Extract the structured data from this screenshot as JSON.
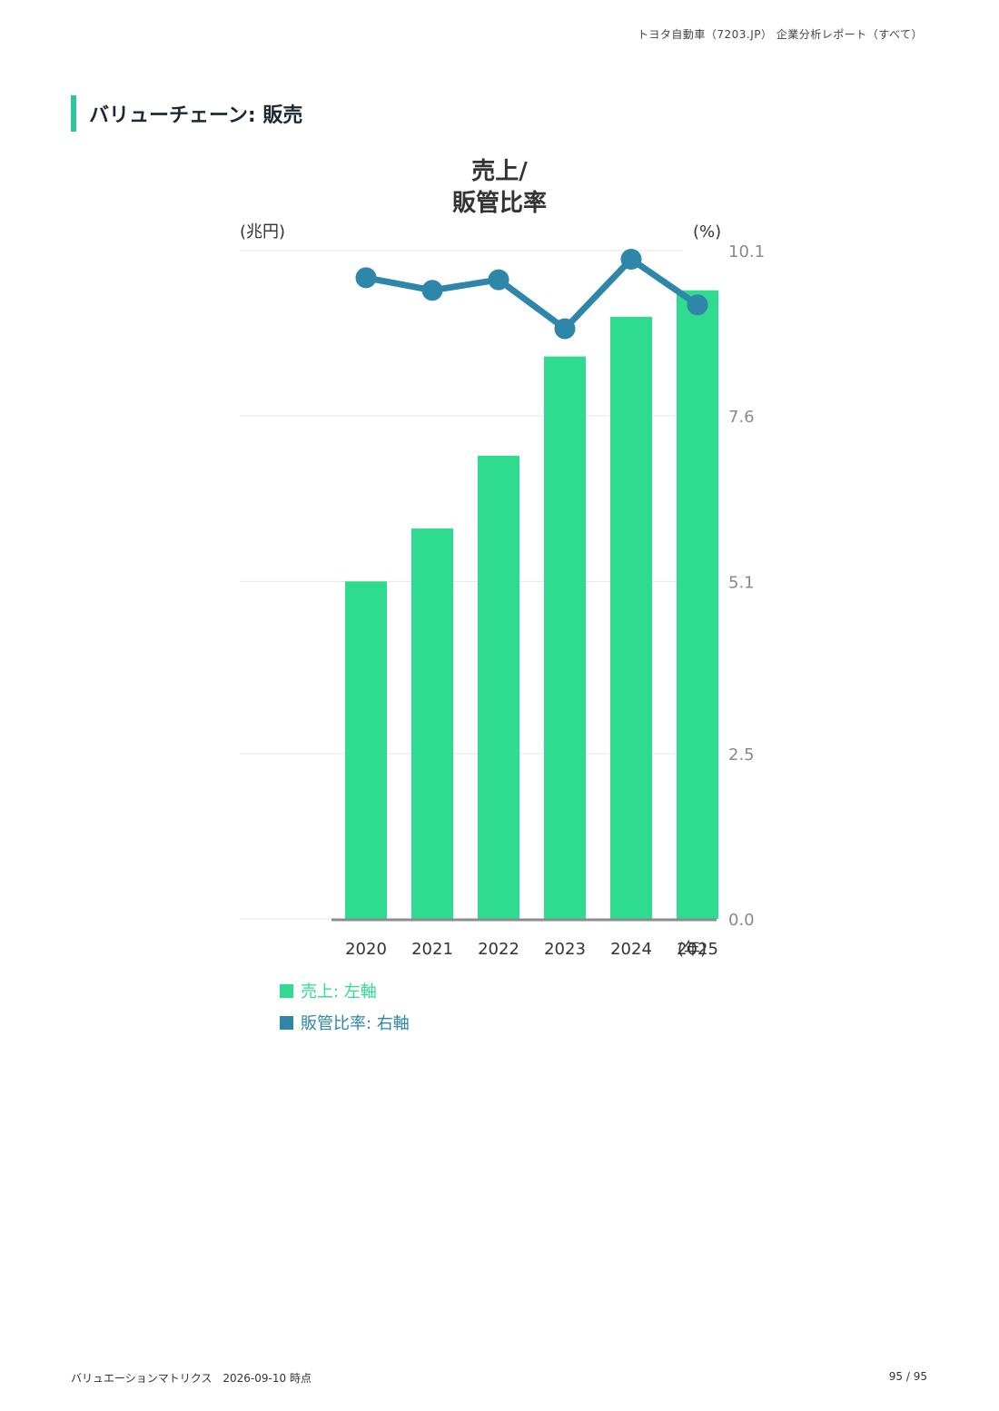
{
  "header": {
    "title": "トヨタ自動車（7203.JP） 企業分析レポート（すべて）"
  },
  "section": {
    "heading": "バリューチェーン: 販売"
  },
  "footer": {
    "left": "バリュエーションマトリクス　2026-09-10 時点",
    "right": "95 / 95"
  },
  "chart_data": {
    "type": "bar",
    "title_lines": [
      "売上/",
      "販管比率"
    ],
    "left_unit": "(兆円)",
    "right_unit": "(%)",
    "x_unit": "(年)",
    "categories": [
      "2020",
      "2021",
      "2022",
      "2023",
      "2024",
      "2025"
    ],
    "y_ticks_right": [
      "10.1",
      "7.6",
      "5.1",
      "2.5",
      "0.0"
    ],
    "ylim_right": [
      0,
      10.1
    ],
    "grid": true,
    "series": [
      {
        "name": "売上: 左軸",
        "type": "bar",
        "axis": "left",
        "color": "#2fdc8f",
        "values": [
          5.1,
          5.9,
          7.0,
          8.5,
          9.1,
          9.5
        ]
      },
      {
        "name": "販管比率: 右軸",
        "type": "line",
        "axis": "right",
        "color": "#2e86a8",
        "values": [
          9.69,
          9.5,
          9.66,
          8.92,
          9.97,
          9.28
        ]
      }
    ],
    "left_scale_max": 10.1,
    "legend_position": "bottom-left"
  }
}
